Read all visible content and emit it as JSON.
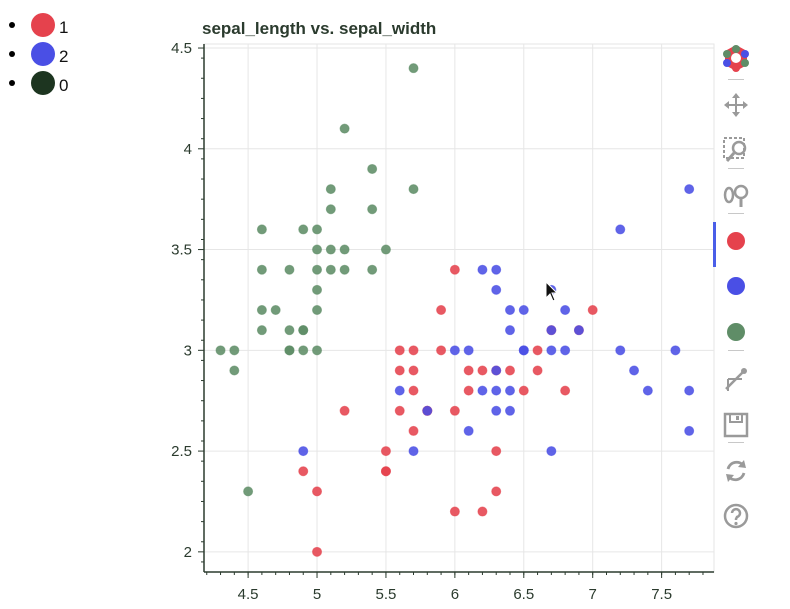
{
  "legend": [
    {
      "label": "1",
      "color": "#e5424d"
    },
    {
      "label": "2",
      "color": "#4a4fe5"
    },
    {
      "label": "0",
      "color": "#1d3520"
    }
  ],
  "toolbar": {
    "icons": [
      "bokeh-logo-icon",
      "pan-icon",
      "box-zoom-icon",
      "wheel-zoom-icon",
      "hover-red-icon",
      "hover-blue-icon",
      "hover-green-icon",
      "crosshair-icon",
      "save-icon",
      "reset-icon",
      "help-icon"
    ]
  },
  "chart_data": {
    "type": "scatter",
    "title": "sepal_length vs. sepal_width",
    "xlabel": "",
    "ylabel": "",
    "xlim": [
      4.18,
      7.88
    ],
    "ylim": [
      1.9,
      4.52
    ],
    "x_ticks": [
      "4.5",
      "5",
      "5.5",
      "6",
      "6.5",
      "7",
      "7.5"
    ],
    "y_ticks": [
      "2",
      "2.5",
      "3",
      "3.5",
      "4",
      "4.5"
    ],
    "grid": true,
    "legend_placement": "top-left",
    "series": [
      {
        "name": "1",
        "color": "#e5424d",
        "points": [
          [
            5.0,
            2.0
          ],
          [
            4.9,
            2.4
          ],
          [
            5.0,
            2.3
          ],
          [
            5.2,
            2.7
          ],
          [
            5.5,
            2.4
          ],
          [
            5.5,
            2.5
          ],
          [
            5.5,
            2.4
          ],
          [
            5.6,
            2.9
          ],
          [
            5.6,
            3.0
          ],
          [
            5.7,
            3.0
          ],
          [
            5.7,
            2.9
          ],
          [
            5.7,
            2.8
          ],
          [
            5.7,
            2.6
          ],
          [
            5.8,
            2.7
          ],
          [
            5.9,
            3.2
          ],
          [
            5.9,
            3.0
          ],
          [
            6.0,
            3.4
          ],
          [
            6.0,
            2.7
          ],
          [
            6.0,
            2.2
          ],
          [
            6.1,
            2.9
          ],
          [
            6.1,
            2.8
          ],
          [
            6.2,
            2.9
          ],
          [
            6.2,
            2.2
          ],
          [
            6.3,
            2.5
          ],
          [
            6.3,
            2.3
          ],
          [
            6.3,
            2.9
          ],
          [
            6.4,
            2.9
          ],
          [
            6.5,
            2.8
          ],
          [
            6.6,
            2.9
          ],
          [
            6.6,
            3.0
          ],
          [
            6.7,
            3.1
          ],
          [
            6.8,
            2.8
          ],
          [
            6.9,
            3.1
          ],
          [
            7.0,
            3.2
          ],
          [
            5.6,
            2.7
          ],
          [
            5.8,
            2.7
          ]
        ]
      },
      {
        "name": "2",
        "color": "#4a4fe5",
        "points": [
          [
            4.9,
            2.5
          ],
          [
            5.6,
            2.8
          ],
          [
            5.7,
            2.5
          ],
          [
            5.8,
            2.7
          ],
          [
            6.0,
            3.0
          ],
          [
            6.1,
            3.0
          ],
          [
            6.1,
            2.6
          ],
          [
            6.2,
            3.4
          ],
          [
            6.2,
            2.8
          ],
          [
            6.3,
            3.4
          ],
          [
            6.3,
            3.3
          ],
          [
            6.3,
            2.9
          ],
          [
            6.3,
            2.8
          ],
          [
            6.3,
            2.7
          ],
          [
            6.4,
            3.2
          ],
          [
            6.4,
            3.1
          ],
          [
            6.4,
            2.8
          ],
          [
            6.4,
            2.7
          ],
          [
            6.5,
            3.2
          ],
          [
            6.5,
            3.0
          ],
          [
            6.5,
            3.0
          ],
          [
            6.7,
            3.3
          ],
          [
            6.7,
            3.0
          ],
          [
            6.7,
            3.1
          ],
          [
            6.7,
            2.5
          ],
          [
            6.8,
            3.2
          ],
          [
            6.8,
            3.0
          ],
          [
            6.9,
            3.1
          ],
          [
            7.2,
            3.6
          ],
          [
            7.2,
            3.0
          ],
          [
            7.3,
            2.9
          ],
          [
            7.4,
            2.8
          ],
          [
            7.6,
            3.0
          ],
          [
            7.7,
            3.8
          ],
          [
            7.7,
            2.8
          ],
          [
            7.7,
            2.6
          ]
        ]
      },
      {
        "name": "0",
        "color": "#5f8d67",
        "points": [
          [
            4.3,
            3.0
          ],
          [
            4.4,
            3.0
          ],
          [
            4.4,
            2.9
          ],
          [
            4.5,
            2.3
          ],
          [
            4.6,
            3.6
          ],
          [
            4.6,
            3.4
          ],
          [
            4.6,
            3.2
          ],
          [
            4.6,
            3.1
          ],
          [
            4.7,
            3.2
          ],
          [
            4.8,
            3.4
          ],
          [
            4.8,
            3.1
          ],
          [
            4.8,
            3.0
          ],
          [
            4.9,
            3.6
          ],
          [
            4.9,
            3.1
          ],
          [
            4.9,
            3.0
          ],
          [
            5.0,
            3.6
          ],
          [
            5.0,
            3.5
          ],
          [
            5.0,
            3.4
          ],
          [
            5.0,
            3.3
          ],
          [
            5.0,
            3.2
          ],
          [
            5.0,
            3.0
          ],
          [
            5.1,
            3.8
          ],
          [
            5.1,
            3.7
          ],
          [
            5.1,
            3.5
          ],
          [
            5.1,
            3.4
          ],
          [
            5.2,
            4.1
          ],
          [
            5.2,
            3.5
          ],
          [
            5.2,
            3.4
          ],
          [
            5.4,
            3.9
          ],
          [
            5.4,
            3.7
          ],
          [
            5.4,
            3.4
          ],
          [
            5.5,
            3.5
          ],
          [
            5.7,
            4.4
          ],
          [
            5.7,
            3.8
          ],
          [
            4.8,
            3.0
          ],
          [
            4.9,
            3.1
          ]
        ]
      }
    ]
  }
}
